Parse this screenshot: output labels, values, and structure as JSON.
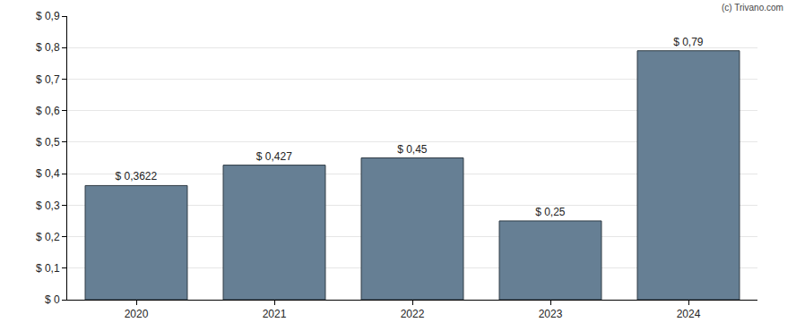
{
  "chart_data": {
    "type": "bar",
    "annotation": "(c) Trivano.com",
    "categories": [
      "2020",
      "2021",
      "2022",
      "2023",
      "2024"
    ],
    "values": [
      0.3622,
      0.427,
      0.45,
      0.25,
      0.79
    ],
    "value_labels": [
      "$ 0,3622",
      "$ 0,427",
      "$ 0,45",
      "$ 0,25",
      "$ 0,79"
    ],
    "data_labels": true,
    "color": "#667f94",
    "ylim": [
      0,
      0.9
    ],
    "yticks": [
      {
        "value": 0,
        "label": "$ 0"
      },
      {
        "value": 0.1,
        "label": "$ 0,1"
      },
      {
        "value": 0.2,
        "label": "$ 0,2"
      },
      {
        "value": 0.3,
        "label": "$ 0,3"
      },
      {
        "value": 0.4,
        "label": "$ 0,4"
      },
      {
        "value": 0.5,
        "label": "$ 0,5"
      },
      {
        "value": 0.6,
        "label": "$ 0,6"
      },
      {
        "value": 0.7,
        "label": "$ 0,7"
      },
      {
        "value": 0.8,
        "label": "$ 0,8"
      },
      {
        "value": 0.9,
        "label": "$ 0,9"
      }
    ],
    "grid": true
  }
}
